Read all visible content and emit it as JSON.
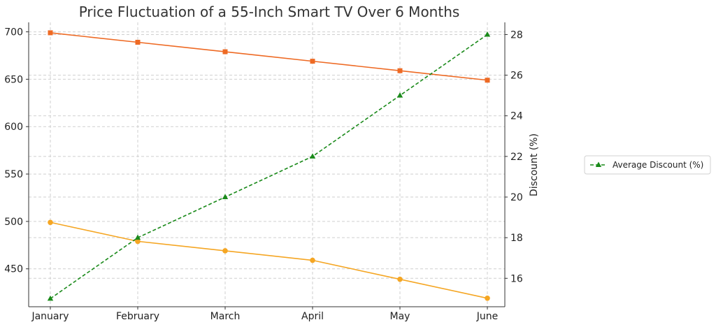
{
  "chart_data": {
    "type": "line",
    "title": "Price Fluctuation of a 55-Inch Smart TV Over 6 Months",
    "categories": [
      "January",
      "February",
      "March",
      "April",
      "May",
      "June"
    ],
    "y_left": {
      "label": "",
      "ylim": [
        410,
        710
      ],
      "ticks": [
        450,
        500,
        550,
        600,
        650,
        700
      ]
    },
    "y_right": {
      "label": "Discount (%)",
      "ylim": [
        14.6,
        28.6
      ],
      "ticks": [
        16,
        18,
        20,
        22,
        24,
        26,
        28
      ]
    },
    "grid": true,
    "legend_position": "right",
    "series": [
      {
        "values": [
          699,
          689,
          679,
          669,
          659,
          649
        ],
        "axis": "left",
        "color": "#ee6a24",
        "marker": "square",
        "style": "solid"
      },
      {
        "values": [
          499,
          479,
          469,
          459,
          439,
          419
        ],
        "axis": "left",
        "color": "#f5a623",
        "marker": "circle",
        "style": "solid"
      },
      {
        "name": "Average Discount (%)",
        "values": [
          15,
          18,
          20,
          22,
          25,
          28
        ],
        "axis": "right",
        "color": "#1a8a1a",
        "marker": "triangle",
        "style": "dashed"
      }
    ]
  }
}
